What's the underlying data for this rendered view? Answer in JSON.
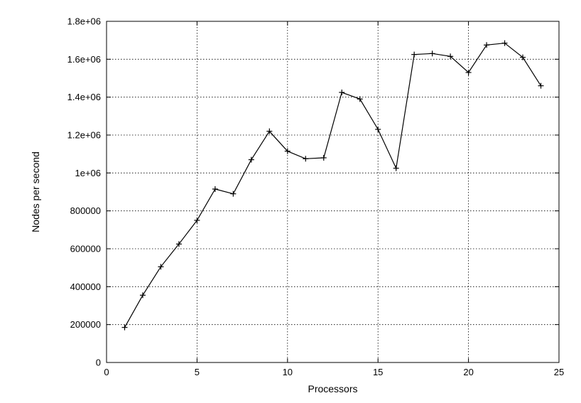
{
  "chart_data": {
    "type": "line",
    "xlabel": "Processors",
    "ylabel": "Nodes per second",
    "xlim": [
      0,
      25
    ],
    "ylim": [
      0,
      1800000
    ],
    "grid": true,
    "x_ticks": [
      0,
      5,
      10,
      15,
      20,
      25
    ],
    "x_tick_labels": [
      "0",
      "5",
      "10",
      "15",
      "20",
      "25"
    ],
    "y_ticks": [
      0,
      200000,
      400000,
      600000,
      800000,
      1000000,
      1200000,
      1400000,
      1600000,
      1800000
    ],
    "y_tick_labels": [
      "0",
      "200000",
      "400000",
      "600000",
      "800000",
      "1e+06",
      "1.2e+06",
      "1.4e+06",
      "1.6e+06",
      "1.8e+06"
    ],
    "series": [
      {
        "marker": "+",
        "x": [
          1,
          2,
          3,
          4,
          5,
          6,
          7,
          8,
          9,
          10,
          11,
          12,
          13,
          14,
          15,
          16,
          17,
          18,
          19,
          20,
          21,
          22,
          23,
          24
        ],
        "y": [
          185000,
          355000,
          505000,
          625000,
          750000,
          915000,
          890000,
          1070000,
          1220000,
          1115000,
          1075000,
          1080000,
          1425000,
          1390000,
          1230000,
          1025000,
          1625000,
          1630000,
          1615000,
          1530000,
          1675000,
          1685000,
          1610000,
          1460000
        ]
      }
    ]
  }
}
